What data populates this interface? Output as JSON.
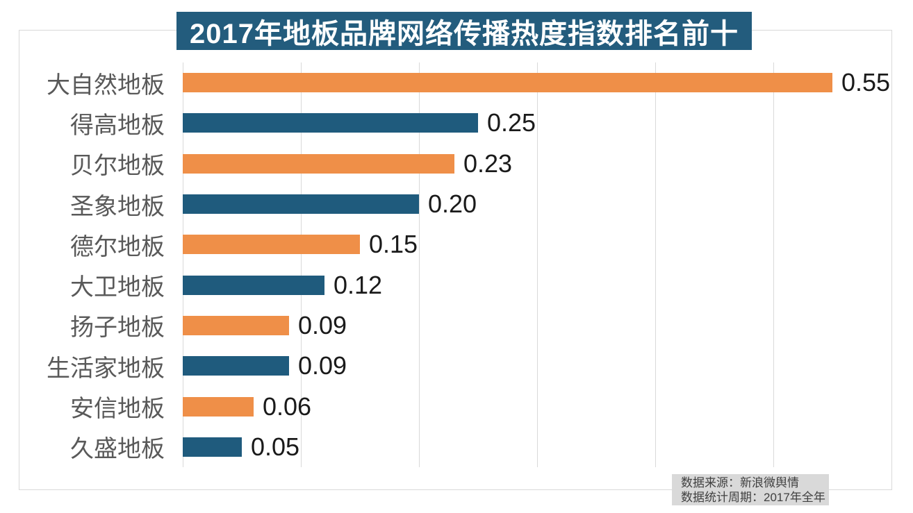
{
  "title": "2017年地板品牌网络传播热度指数排名前十",
  "source_note": {
    "line1": "数据来源：新浪微舆情",
    "line2": "数据统计周期：2017年全年"
  },
  "colors": {
    "title_bg": "#235C7D",
    "orange_bar": "#EF8F48",
    "teal_bar": "#1F5B7D",
    "gridline": "#d9d9d9",
    "category_label": "#595959",
    "value_label": "#1a1a1a",
    "note_bg": "#d9d9d9",
    "note_text": "#404040"
  },
  "chart_data": {
    "type": "bar",
    "orientation": "horizontal",
    "title": "2017年地板品牌网络传播热度指数排名前十",
    "categories": [
      "大自然地板",
      "得高地板",
      "贝尔地板",
      "圣象地板",
      "德尔地板",
      "大卫地板",
      "扬子地板",
      "生活家地板",
      "安信地板",
      "久盛地板"
    ],
    "values": [
      0.55,
      0.25,
      0.23,
      0.2,
      0.15,
      0.12,
      0.09,
      0.09,
      0.06,
      0.05
    ],
    "value_labels": [
      "0.55",
      "0.25",
      "0.23",
      "0.20",
      "0.15",
      "0.12",
      "0.09",
      "0.09",
      "0.06",
      "0.05"
    ],
    "bar_colors": [
      "#EF8F48",
      "#1F5B7D",
      "#EF8F48",
      "#1F5B7D",
      "#EF8F48",
      "#1F5B7D",
      "#EF8F48",
      "#1F5B7D",
      "#EF8F48",
      "#1F5B7D"
    ],
    "xlabel": "",
    "ylabel": "",
    "xlim": [
      0,
      0.6
    ],
    "grid_step": 0.1,
    "grid": true,
    "legend": false,
    "value_label_position": "outside-end"
  }
}
